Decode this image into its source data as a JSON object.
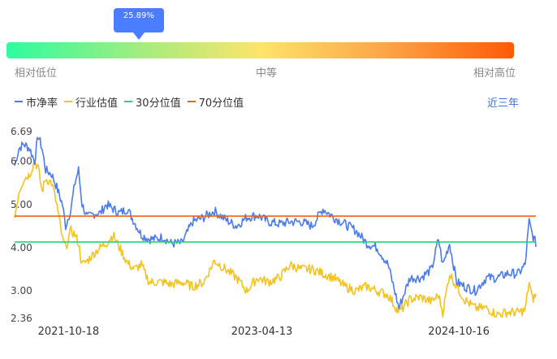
{
  "gauge": {
    "current_percentile": "25.89%",
    "current_fraction": 0.2589,
    "labels": {
      "low": "相对低位",
      "mid": "中等",
      "high": "相对高位"
    }
  },
  "legend": [
    {
      "name": "市净率",
      "color": "#4b7bec"
    },
    {
      "name": "行业估值",
      "color": "#f5c31c"
    },
    {
      "name": "30分位值",
      "color": "#1fd67a"
    },
    {
      "name": "70分位值",
      "color": "#f5620d"
    }
  ],
  "period": "近三年",
  "chart_data": {
    "type": "line",
    "x_start": "2021-05-20",
    "x_end": "2025-05-20",
    "x_tick_labels": [
      {
        "date": "2021-10-18",
        "label": "2021-10-18"
      },
      {
        "date": "2023-04-13",
        "label": "2023-04-13"
      },
      {
        "date": "2024-10-16",
        "label": "2024-10-16"
      }
    ],
    "y_tick_labels": [
      "6.69",
      "6.00",
      "5.00",
      "4.00",
      "3.00",
      "2.36"
    ],
    "ylim": [
      2.36,
      6.69
    ],
    "grid": false,
    "series": [
      {
        "name": "市净率",
        "color": "#4b7bec",
        "points": [
          [
            "2021-05-20",
            5.9
          ],
          [
            "2021-06-01",
            6.3
          ],
          [
            "2021-06-15",
            6.4
          ],
          [
            "2021-07-01",
            6.3
          ],
          [
            "2021-07-15",
            6.0
          ],
          [
            "2021-07-25",
            6.6
          ],
          [
            "2021-08-05",
            6.3
          ],
          [
            "2021-08-15",
            5.8
          ],
          [
            "2021-09-01",
            5.7
          ],
          [
            "2021-09-15",
            5.4
          ],
          [
            "2021-10-01",
            5.0
          ],
          [
            "2021-10-10",
            4.5
          ],
          [
            "2021-10-25",
            4.9
          ],
          [
            "2021-11-05",
            5.5
          ],
          [
            "2021-11-15",
            5.8
          ],
          [
            "2021-11-25",
            5.0
          ],
          [
            "2021-12-10",
            4.7
          ],
          [
            "2022-01-01",
            4.8
          ],
          [
            "2022-01-15",
            4.8
          ],
          [
            "2022-02-01",
            5.0
          ],
          [
            "2022-02-20",
            4.9
          ],
          [
            "2022-03-10",
            4.8
          ],
          [
            "2022-04-01",
            4.9
          ],
          [
            "2022-04-20",
            4.6
          ],
          [
            "2022-05-10",
            4.3
          ],
          [
            "2022-06-01",
            4.2
          ],
          [
            "2022-06-20",
            4.2
          ],
          [
            "2022-07-10",
            4.25
          ],
          [
            "2022-08-01",
            4.1
          ],
          [
            "2022-09-01",
            4.1
          ],
          [
            "2022-10-01",
            4.6
          ],
          [
            "2022-11-01",
            4.7
          ],
          [
            "2022-12-01",
            4.85
          ],
          [
            "2023-01-01",
            4.65
          ],
          [
            "2023-02-01",
            4.5
          ],
          [
            "2023-03-01",
            4.7
          ],
          [
            "2023-04-01",
            4.75
          ],
          [
            "2023-05-01",
            4.6
          ],
          [
            "2023-06-01",
            4.55
          ],
          [
            "2023-07-01",
            4.6
          ],
          [
            "2023-08-01",
            4.6
          ],
          [
            "2023-09-01",
            4.5
          ],
          [
            "2023-10-01",
            4.9
          ],
          [
            "2023-11-01",
            4.7
          ],
          [
            "2023-12-01",
            4.55
          ],
          [
            "2024-01-01",
            4.4
          ],
          [
            "2024-02-01",
            4.1
          ],
          [
            "2024-03-01",
            4.0
          ],
          [
            "2024-04-01",
            3.6
          ],
          [
            "2024-05-01",
            2.6
          ],
          [
            "2024-06-01",
            3.3
          ],
          [
            "2024-07-01",
            3.3
          ],
          [
            "2024-08-01",
            3.5
          ],
          [
            "2024-08-20",
            4.2
          ],
          [
            "2024-09-01",
            3.6
          ],
          [
            "2024-09-20",
            4.1
          ],
          [
            "2024-10-10",
            3.2
          ],
          [
            "2024-11-01",
            3.1
          ],
          [
            "2024-12-01",
            3.0
          ],
          [
            "2025-01-01",
            3.3
          ],
          [
            "2025-02-01",
            3.3
          ],
          [
            "2025-03-01",
            3.4
          ],
          [
            "2025-04-01",
            3.4
          ],
          [
            "2025-04-20",
            3.6
          ],
          [
            "2025-05-01",
            4.6
          ],
          [
            "2025-05-10",
            4.3
          ],
          [
            "2025-05-20",
            4.1
          ]
        ]
      },
      {
        "name": "行业估值",
        "color": "#f5c31c",
        "points": [
          [
            "2021-05-20",
            4.7
          ],
          [
            "2021-06-01",
            5.3
          ],
          [
            "2021-06-15",
            5.6
          ],
          [
            "2021-07-01",
            5.7
          ],
          [
            "2021-07-15",
            6.0
          ],
          [
            "2021-07-25",
            5.85
          ],
          [
            "2021-08-05",
            5.3
          ],
          [
            "2021-08-15",
            5.6
          ],
          [
            "2021-09-01",
            5.5
          ],
          [
            "2021-09-15",
            5.0
          ],
          [
            "2021-10-01",
            4.2
          ],
          [
            "2021-10-10",
            4.0
          ],
          [
            "2021-10-25",
            4.4
          ],
          [
            "2021-11-05",
            4.3
          ],
          [
            "2021-11-15",
            4.1
          ],
          [
            "2021-11-25",
            3.6
          ],
          [
            "2021-12-10",
            3.7
          ],
          [
            "2022-01-01",
            3.9
          ],
          [
            "2022-01-15",
            4.0
          ],
          [
            "2022-02-01",
            4.1
          ],
          [
            "2022-02-20",
            4.3
          ],
          [
            "2022-03-10",
            4.0
          ],
          [
            "2022-04-01",
            3.65
          ],
          [
            "2022-04-20",
            3.5
          ],
          [
            "2022-05-10",
            3.6
          ],
          [
            "2022-06-01",
            3.2
          ],
          [
            "2022-06-20",
            3.2
          ],
          [
            "2022-07-10",
            3.2
          ],
          [
            "2022-08-01",
            3.15
          ],
          [
            "2022-09-01",
            3.2
          ],
          [
            "2022-10-01",
            3.1
          ],
          [
            "2022-11-01",
            3.2
          ],
          [
            "2022-12-01",
            3.7
          ],
          [
            "2023-01-01",
            3.5
          ],
          [
            "2023-02-01",
            3.3
          ],
          [
            "2023-03-01",
            3.0
          ],
          [
            "2023-04-01",
            3.3
          ],
          [
            "2023-05-01",
            3.2
          ],
          [
            "2023-06-01",
            3.3
          ],
          [
            "2023-07-01",
            3.6
          ],
          [
            "2023-08-01",
            3.5
          ],
          [
            "2023-09-01",
            3.5
          ],
          [
            "2023-10-01",
            3.4
          ],
          [
            "2023-11-01",
            3.3
          ],
          [
            "2023-12-01",
            3.1
          ],
          [
            "2024-01-01",
            3.0
          ],
          [
            "2024-02-01",
            3.1
          ],
          [
            "2024-03-01",
            3.0
          ],
          [
            "2024-04-01",
            2.9
          ],
          [
            "2024-05-01",
            2.5
          ],
          [
            "2024-06-01",
            2.8
          ],
          [
            "2024-07-01",
            2.85
          ],
          [
            "2024-08-01",
            2.75
          ],
          [
            "2024-08-20",
            2.9
          ],
          [
            "2024-09-01",
            2.5
          ],
          [
            "2024-09-20",
            3.4
          ],
          [
            "2024-10-10",
            3.1
          ],
          [
            "2024-11-01",
            2.8
          ],
          [
            "2024-12-01",
            2.6
          ],
          [
            "2025-01-01",
            2.6
          ],
          [
            "2025-02-01",
            2.45
          ],
          [
            "2025-03-01",
            2.5
          ],
          [
            "2025-04-01",
            2.5
          ],
          [
            "2025-04-20",
            2.55
          ],
          [
            "2025-05-01",
            3.2
          ],
          [
            "2025-05-10",
            2.8
          ],
          [
            "2025-05-20",
            2.9
          ]
        ]
      },
      {
        "name": "30分位值",
        "color": "#1fd67a",
        "constant": 4.13
      },
      {
        "name": "70分位值",
        "color": "#f5620d",
        "constant": 4.73
      }
    ]
  }
}
